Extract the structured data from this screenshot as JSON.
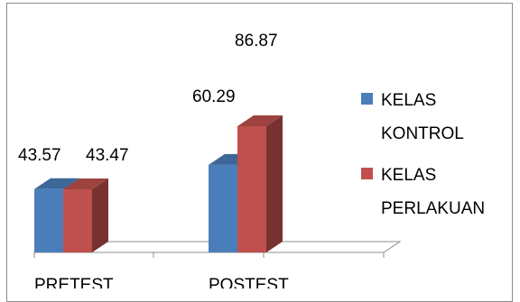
{
  "chart_data": {
    "type": "bar",
    "categories": [
      "PRETEST",
      "POSTEST"
    ],
    "series": [
      {
        "name": "KELAS KONTROL",
        "values": [
          43.57,
          60.29
        ],
        "color": "#4a7ebb"
      },
      {
        "name": "KELAS PERLAKUAN",
        "values": [
          43.47,
          86.87
        ],
        "color": "#c0504d"
      }
    ],
    "data_labels": [
      "43.57",
      "43.47",
      "60.29",
      "86.87"
    ],
    "legend": {
      "position": "right",
      "entries": [
        {
          "lines": [
            "KELAS",
            "KONTROL"
          ]
        },
        {
          "lines": [
            "KELAS",
            "PERLAKUAN"
          ]
        }
      ]
    },
    "style": "3d-column",
    "grid": false
  }
}
